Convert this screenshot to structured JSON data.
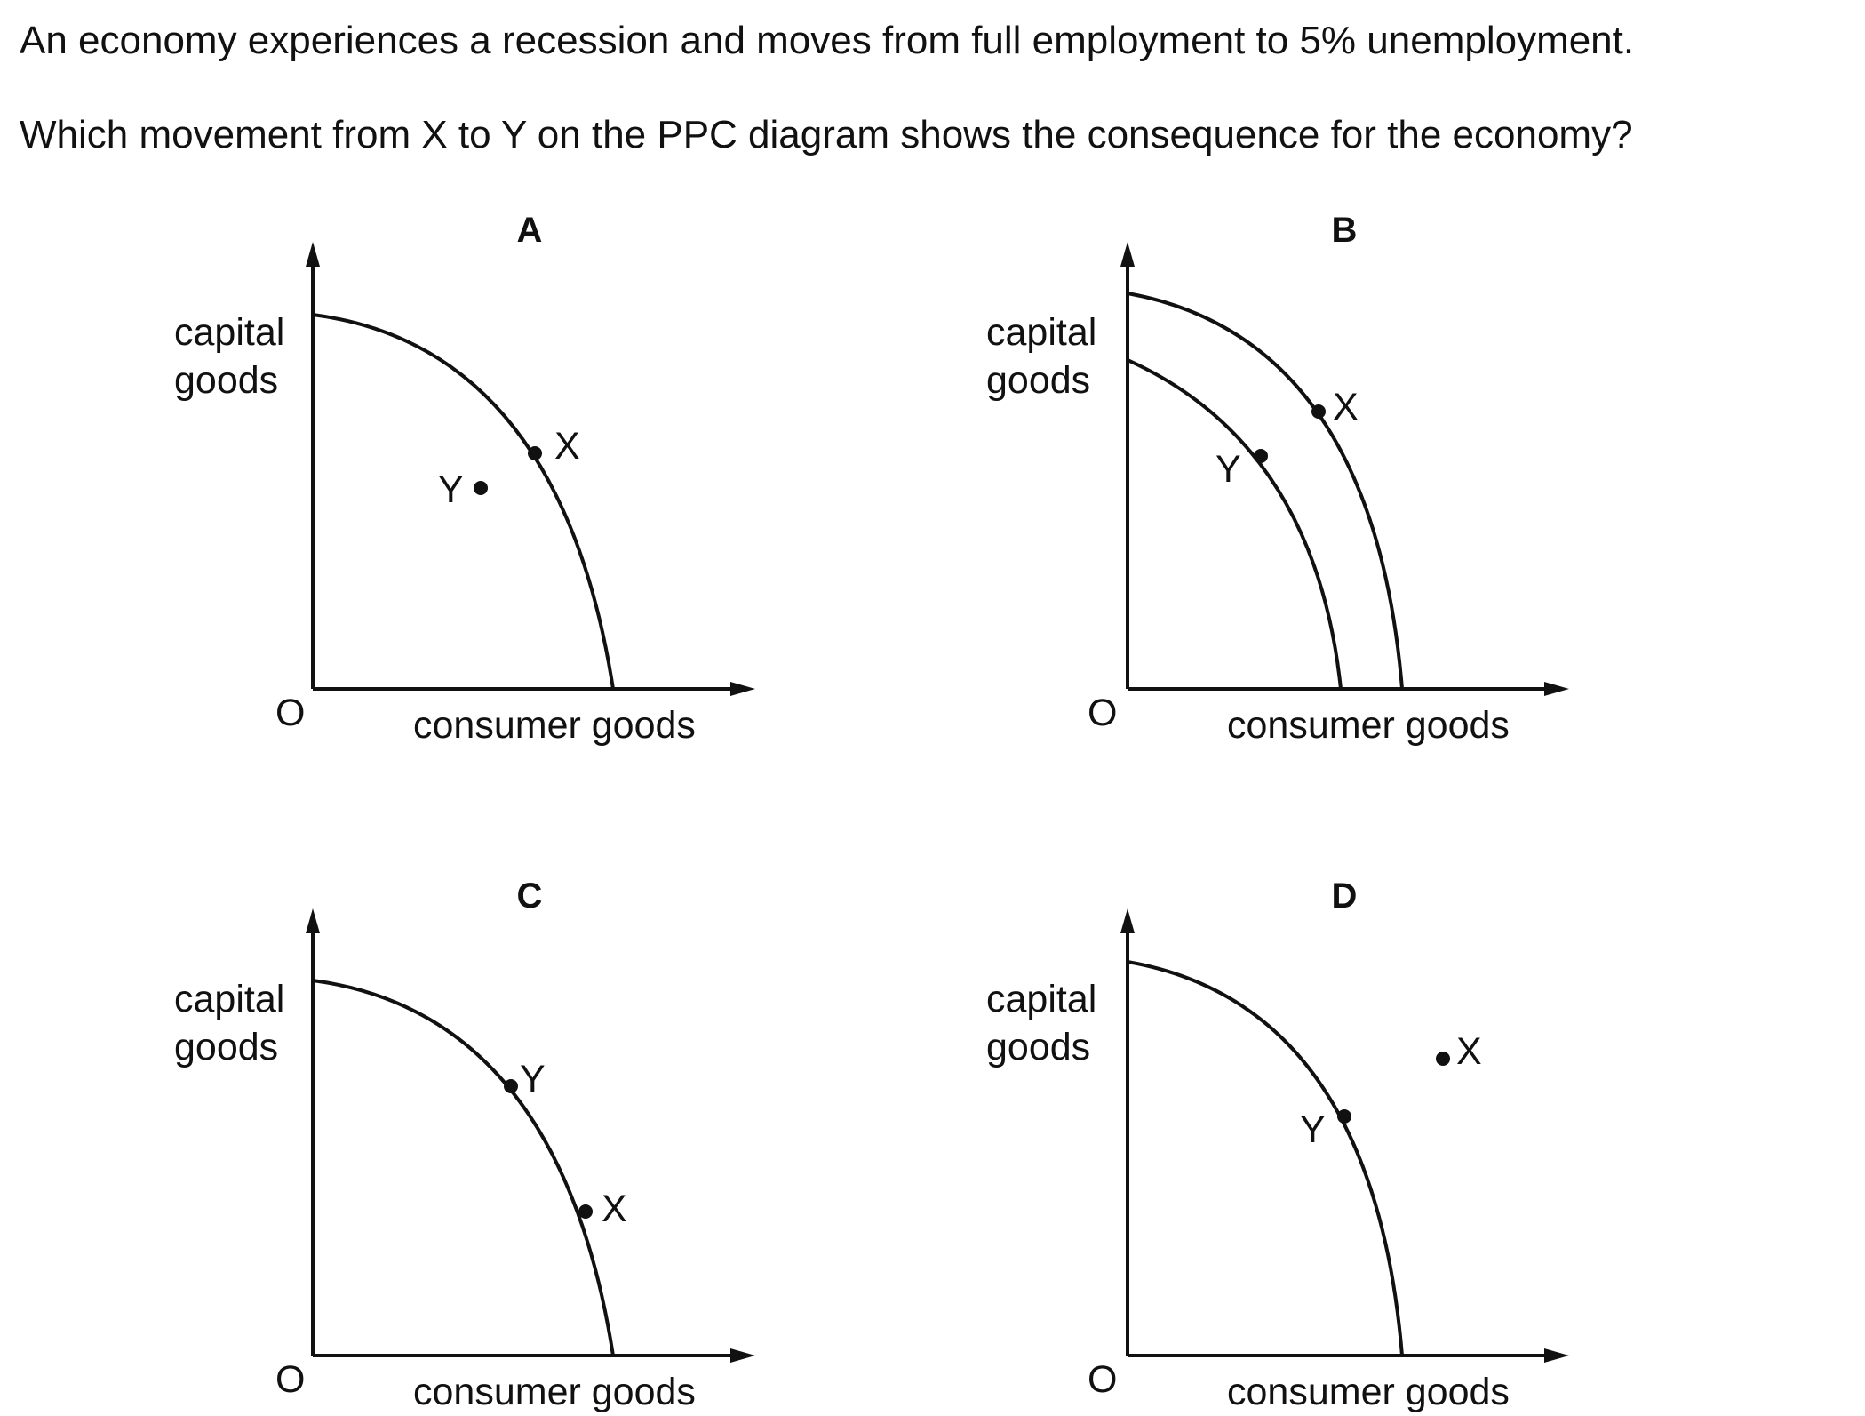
{
  "question": {
    "line1": "An economy experiences a recession and moves from full employment to 5% unemployment.",
    "line2": "Which movement from X to Y on the PPC diagram shows the consequence for the economy?"
  },
  "diagrams": [
    {
      "key": "a",
      "label": "A",
      "y_axis_label": [
        "capital",
        "goods"
      ],
      "x_axis_label": "consumer goods",
      "origin_label": "O",
      "point_x_label": "X",
      "point_y_label": "Y"
    },
    {
      "key": "b",
      "label": "B",
      "y_axis_label": [
        "capital",
        "goods"
      ],
      "x_axis_label": "consumer goods",
      "origin_label": "O",
      "point_x_label": "X",
      "point_y_label": "Y"
    },
    {
      "key": "c",
      "label": "C",
      "y_axis_label": [
        "capital",
        "goods"
      ],
      "x_axis_label": "consumer goods",
      "origin_label": "O",
      "point_x_label": "X",
      "point_y_label": "Y"
    },
    {
      "key": "d",
      "label": "D",
      "y_axis_label": [
        "capital",
        "goods"
      ],
      "x_axis_label": "consumer goods",
      "origin_label": "O",
      "point_x_label": "X",
      "point_y_label": "Y"
    }
  ],
  "colors": {
    "ink": "#111111",
    "background": "#ffffff"
  }
}
